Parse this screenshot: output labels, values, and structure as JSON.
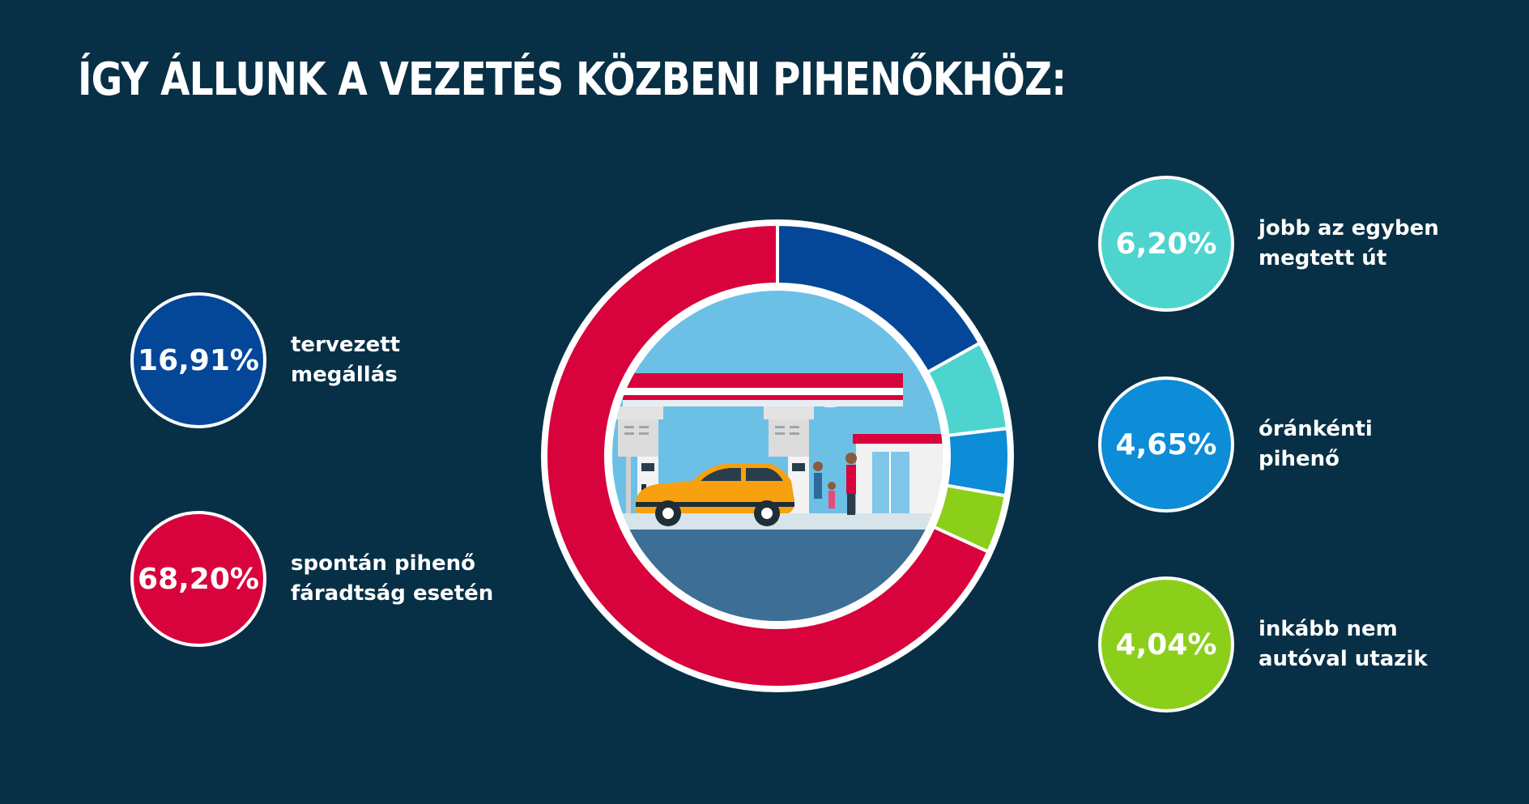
{
  "title": "ÍGY ÁLLUNK A VEZETÉS KÖZBENI PIHENŐKHÖZ:",
  "chart_data": {
    "type": "pie",
    "categories": [
      "tervezett megállás",
      "jobb az egyben megtett út",
      "óránkénti pihenő",
      "inkább nem autóval utazik",
      "spontán pihenő fáradtság esetén"
    ],
    "values": [
      16.91,
      6.2,
      4.65,
      4.04,
      68.2
    ],
    "value_labels": [
      "16,91%",
      "6,20%",
      "4,65%",
      "4,04%",
      "68,20%"
    ],
    "colors": [
      "#044799",
      "#4dd4cf",
      "#0d8cd8",
      "#8bcf1b",
      "#d8033c"
    ],
    "legend": [
      {
        "value_label": "16,91%",
        "label": "tervezett\nmegállás",
        "color": "#044799"
      },
      {
        "value_label": "68,20%",
        "label": "spontán pihenő\nfáradtság esetén",
        "color": "#d8033c"
      },
      {
        "value_label": "6,20%",
        "label": "jobb az egyben\nmegtett út",
        "color": "#4dd4cf"
      },
      {
        "value_label": "4,65%",
        "label": "óránkénti\npihenő",
        "color": "#0d8cd8"
      },
      {
        "value_label": "4,04%",
        "label": "inkább nem\nautóval utazik",
        "color": "#8bcf1b"
      }
    ]
  },
  "colors": {
    "background": "#073046",
    "separator": "#ffffff"
  },
  "illustration": {
    "icon": "gas-station-illustration-icon"
  }
}
